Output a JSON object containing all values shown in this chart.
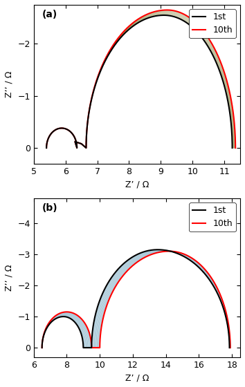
{
  "panel_a": {
    "title": "(a)",
    "xlabel": "Z’ / Ω",
    "ylabel": "Z’’ / Ω",
    "xlim": [
      5,
      11.5
    ],
    "ylim_bottom": 0.3,
    "ylim_top": -2.75,
    "yticks": [
      0,
      -1,
      -2
    ],
    "xticks": [
      5,
      6,
      7,
      8,
      9,
      10,
      11
    ],
    "legend_labels": [
      "1st",
      "10th"
    ],
    "legend_colors": [
      "#000000",
      "#ff0000"
    ]
  },
  "panel_b": {
    "title": "(b)",
    "xlabel": "Z’ / Ω",
    "ylabel": "Z’’ / Ω",
    "xlim": [
      6,
      18.5
    ],
    "ylim_bottom": 0.3,
    "ylim_top": -4.8,
    "yticks": [
      0,
      -1,
      -2,
      -3,
      -4
    ],
    "xticks": [
      6,
      8,
      10,
      12,
      14,
      16,
      18
    ],
    "legend_labels": [
      "1st",
      "10th"
    ],
    "legend_colors": [
      "#000000",
      "#ff0000"
    ]
  },
  "intermediate_color": "#a8c8d8",
  "n_intermediate": 8
}
